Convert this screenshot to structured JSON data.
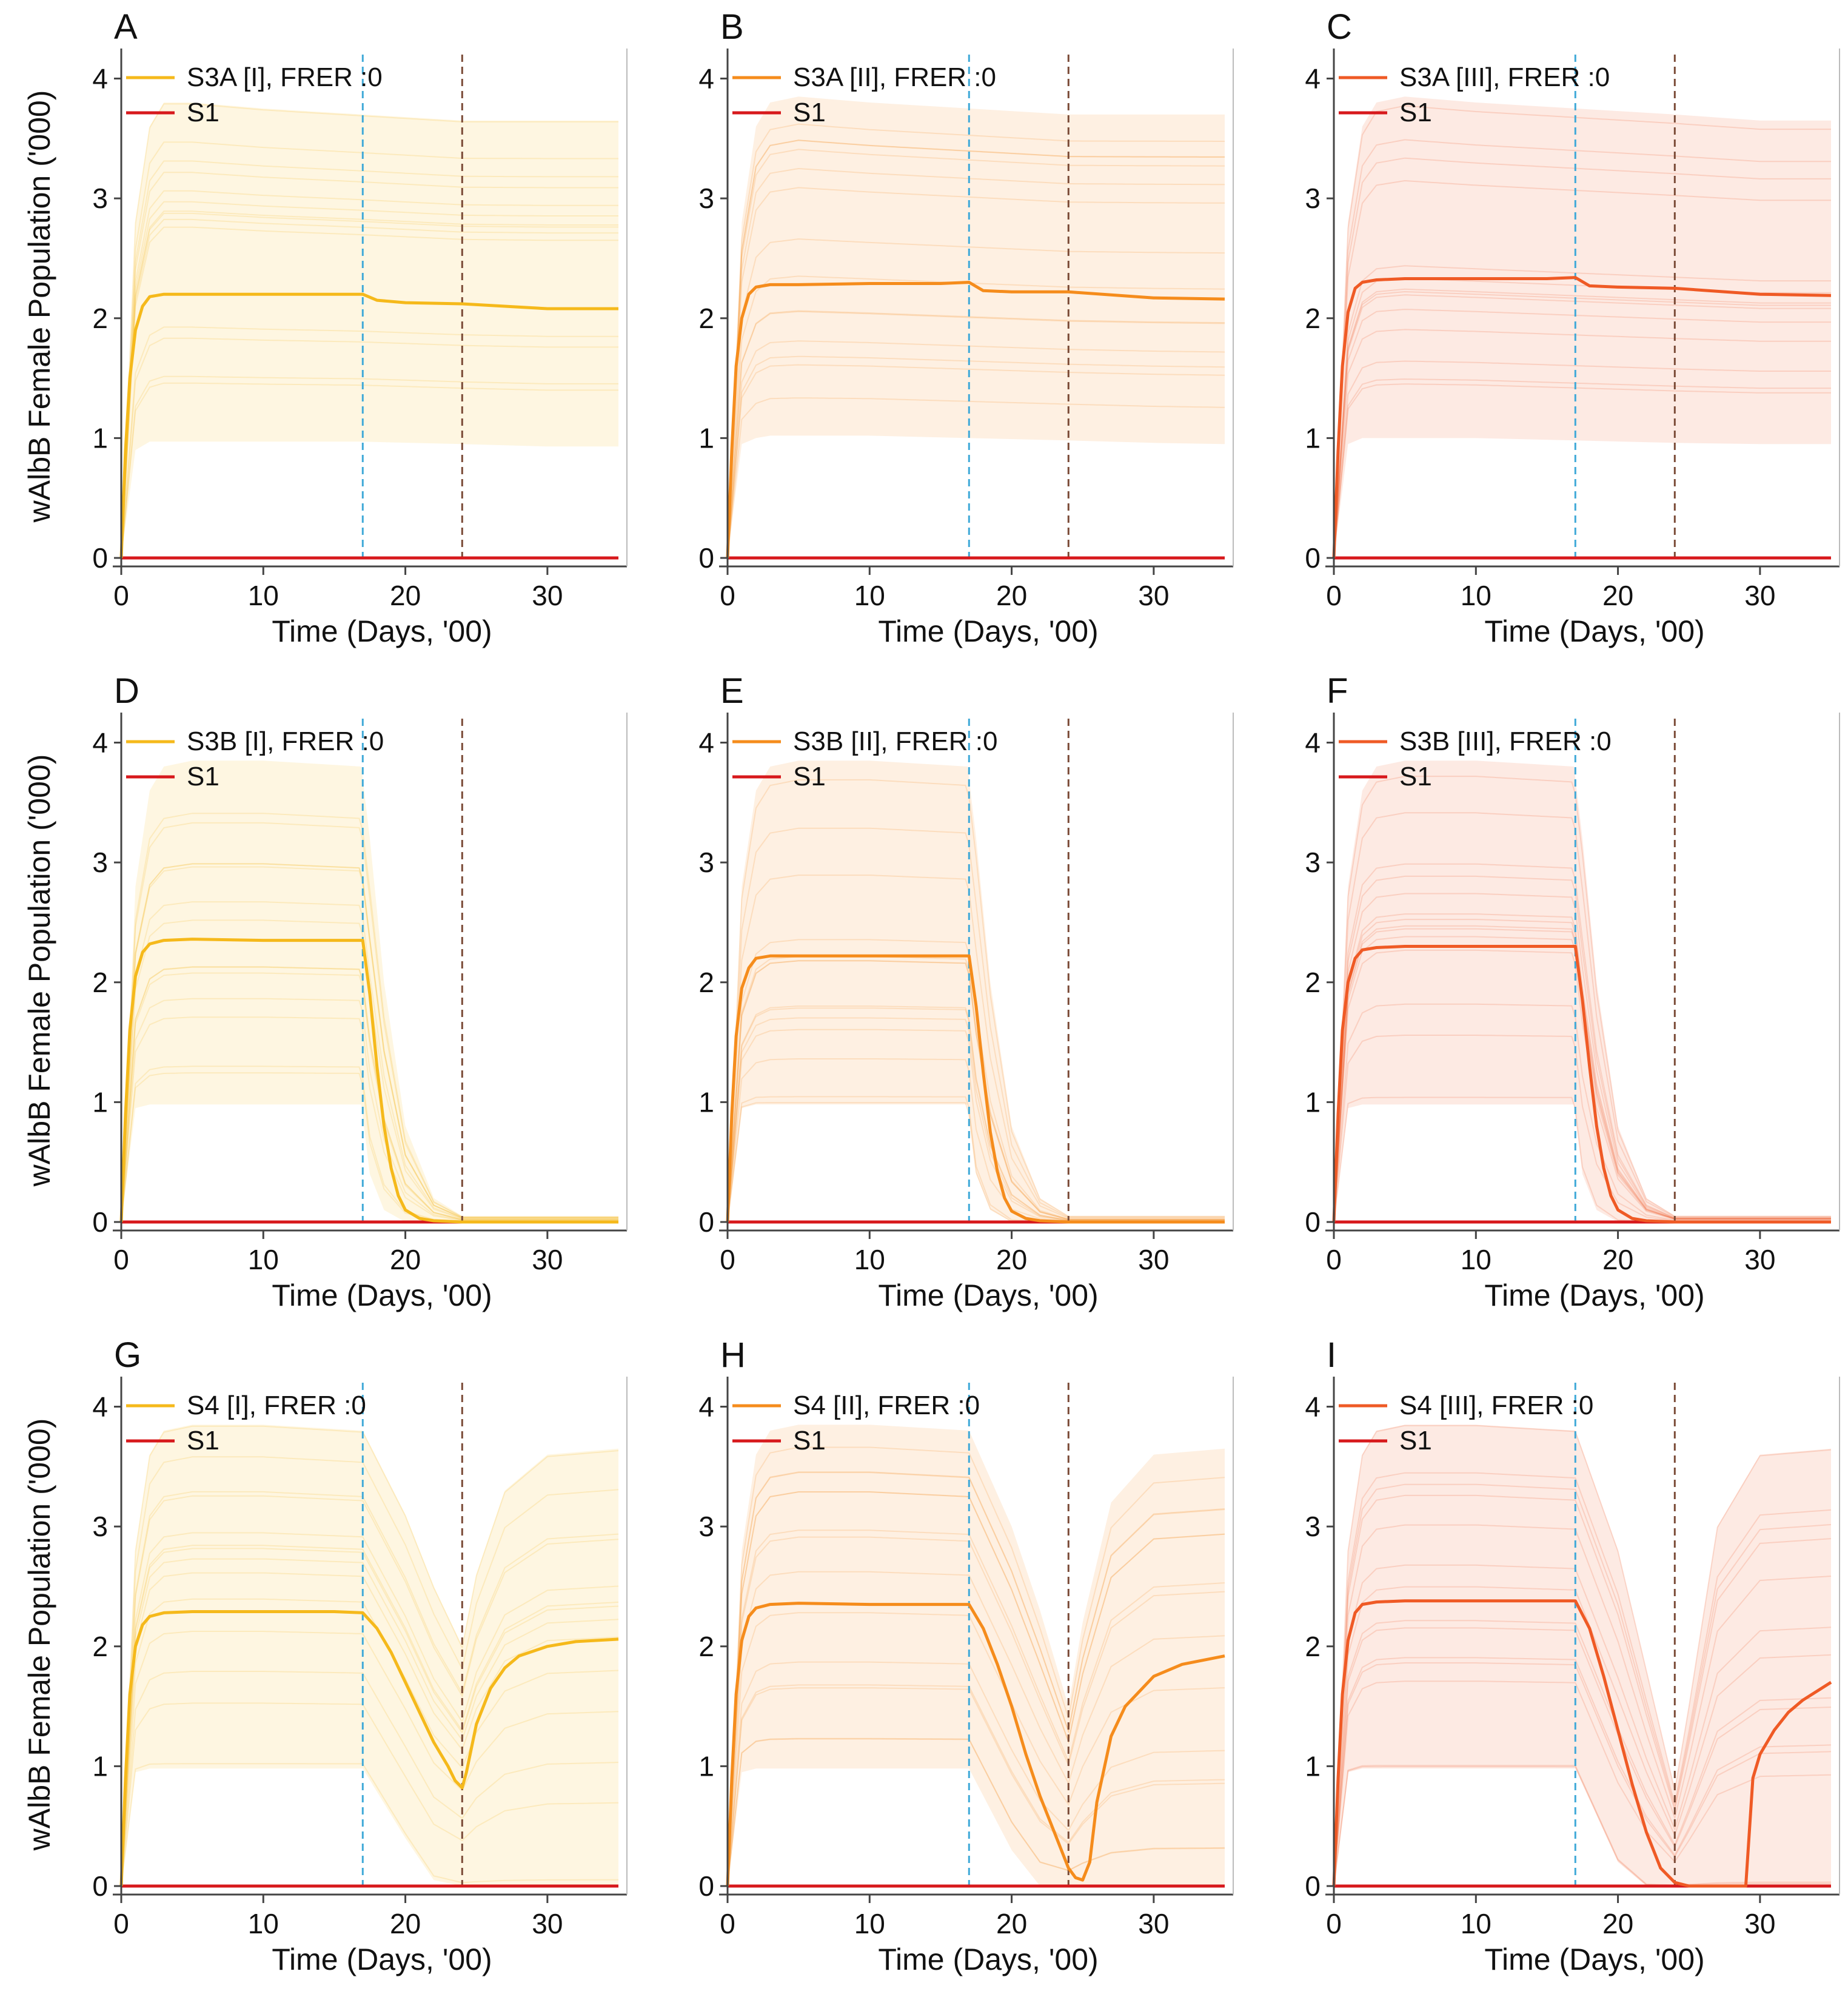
{
  "figure": {
    "axes": {
      "xlabel": "Time (Days, '00)",
      "ylabel": "wAlbB Female Population ('000)",
      "xlim": [
        0,
        35
      ],
      "ylim": [
        0,
        4.2
      ],
      "xticks": [
        0,
        10,
        20,
        30
      ],
      "yticks": [
        0,
        1,
        2,
        3,
        4
      ],
      "vline_blue": 17,
      "vline_brown": 24,
      "vline_blue_color": "#3fa9d8",
      "vline_brown_color": "#7a4a36"
    },
    "colors": {
      "I": "#f5b91b",
      "II": "#f58c1c",
      "III": "#ef5a25",
      "S1": "#d7191c"
    }
  },
  "chart_data": [
    {
      "type": "line",
      "panel": "A",
      "scenario": "S3A",
      "intensity": "I",
      "legend": [
        "S3A [I], FRER :0",
        "S1"
      ],
      "xlabel": "Time (Days, '00)",
      "ylabel": "wAlbB Female Population ('000)",
      "xlim": [
        0,
        35
      ],
      "ylim": [
        0,
        4.2
      ],
      "grid": false,
      "legend_position": "top-left",
      "series": [
        {
          "name": "S3A [I], FRER :0 (mean)",
          "x": [
            0,
            0.3,
            0.6,
            1,
            1.5,
            2,
            3,
            5,
            10,
            15,
            17,
            18,
            20,
            24,
            30,
            35
          ],
          "y": [
            0,
            0.9,
            1.5,
            1.9,
            2.1,
            2.18,
            2.2,
            2.2,
            2.2,
            2.2,
            2.2,
            2.15,
            2.13,
            2.12,
            2.08,
            2.08
          ]
        },
        {
          "name": "S1",
          "x": [
            0,
            35
          ],
          "y": [
            0,
            0
          ]
        }
      ],
      "envelope": {
        "x": [
          0,
          1,
          2,
          3,
          5,
          10,
          17,
          24,
          30,
          35
        ],
        "upper": [
          0,
          2.8,
          3.6,
          3.8,
          3.8,
          3.75,
          3.7,
          3.65,
          3.65,
          3.65
        ],
        "lower": [
          0,
          0.9,
          0.97,
          0.97,
          0.97,
          0.97,
          0.97,
          0.95,
          0.93,
          0.93
        ]
      }
    },
    {
      "type": "line",
      "panel": "B",
      "scenario": "S3A",
      "intensity": "II",
      "legend": [
        "S3A [II], FRER :0",
        "S1"
      ],
      "xlabel": "Time (Days, '00)",
      "ylabel": "wAlbB Female Population ('000)",
      "xlim": [
        0,
        35
      ],
      "ylim": [
        0,
        4.2
      ],
      "grid": false,
      "legend_position": "top-left",
      "series": [
        {
          "name": "S3A [II], FRER :0 (mean)",
          "x": [
            0,
            0.3,
            0.6,
            1,
            1.5,
            2,
            3,
            5,
            10,
            15,
            17,
            18,
            20,
            24,
            30,
            35
          ],
          "y": [
            0,
            0.9,
            1.6,
            2.0,
            2.2,
            2.26,
            2.28,
            2.28,
            2.29,
            2.29,
            2.3,
            2.23,
            2.22,
            2.22,
            2.17,
            2.16
          ]
        },
        {
          "name": "S1",
          "x": [
            0,
            35
          ],
          "y": [
            0,
            0
          ]
        }
      ],
      "envelope": {
        "x": [
          0,
          1,
          2,
          3,
          5,
          10,
          17,
          24,
          30,
          35
        ],
        "upper": [
          0,
          2.8,
          3.6,
          3.8,
          3.85,
          3.8,
          3.75,
          3.7,
          3.7,
          3.7
        ],
        "lower": [
          0,
          0.95,
          1.0,
          1.02,
          1.02,
          1.02,
          1.0,
          0.98,
          0.96,
          0.95
        ]
      }
    },
    {
      "type": "line",
      "panel": "C",
      "scenario": "S3A",
      "intensity": "III",
      "legend": [
        "S3A [III], FRER :0",
        "S1"
      ],
      "xlabel": "Time (Days, '00)",
      "ylabel": "wAlbB Female Population ('000)",
      "xlim": [
        0,
        35
      ],
      "ylim": [
        0,
        4.2
      ],
      "grid": false,
      "legend_position": "top-left",
      "series": [
        {
          "name": "S3A [III], FRER :0 (mean)",
          "x": [
            0,
            0.3,
            0.6,
            1,
            1.5,
            2,
            3,
            5,
            10,
            15,
            17,
            18,
            20,
            24,
            30,
            35
          ],
          "y": [
            0,
            0.9,
            1.6,
            2.05,
            2.25,
            2.3,
            2.32,
            2.33,
            2.33,
            2.33,
            2.34,
            2.27,
            2.26,
            2.25,
            2.2,
            2.19
          ]
        },
        {
          "name": "S1",
          "x": [
            0,
            35
          ],
          "y": [
            0,
            0
          ]
        }
      ],
      "envelope": {
        "x": [
          0,
          1,
          2,
          3,
          5,
          10,
          17,
          24,
          30,
          35
        ],
        "upper": [
          0,
          2.8,
          3.6,
          3.8,
          3.85,
          3.8,
          3.75,
          3.7,
          3.65,
          3.65
        ],
        "lower": [
          0,
          0.95,
          1.0,
          1.0,
          1.0,
          1.0,
          0.98,
          0.96,
          0.95,
          0.95
        ]
      }
    },
    {
      "type": "line",
      "panel": "D",
      "scenario": "S3B",
      "intensity": "I",
      "legend": [
        "S3B [I], FRER :0",
        "S1"
      ],
      "xlabel": "Time (Days, '00)",
      "ylabel": "wAlbB Female Population ('000)",
      "xlim": [
        0,
        35
      ],
      "ylim": [
        0,
        4.2
      ],
      "grid": false,
      "legend_position": "top-left",
      "series": [
        {
          "name": "S3B [I], FRER :0 (mean)",
          "x": [
            0,
            0.3,
            0.6,
            1,
            1.5,
            2,
            3,
            5,
            10,
            15,
            17,
            17.5,
            18,
            18.5,
            19,
            19.5,
            20,
            21,
            22,
            24,
            30,
            35
          ],
          "y": [
            0,
            0.9,
            1.6,
            2.05,
            2.25,
            2.32,
            2.35,
            2.36,
            2.35,
            2.35,
            2.35,
            1.9,
            1.3,
            0.8,
            0.45,
            0.22,
            0.1,
            0.03,
            0.01,
            0,
            0,
            0
          ]
        },
        {
          "name": "S1",
          "x": [
            0,
            35
          ],
          "y": [
            0,
            0
          ]
        }
      ],
      "envelope": {
        "x": [
          0,
          1,
          2,
          3,
          5,
          10,
          16.9,
          17.5,
          18.5,
          20,
          22,
          24,
          30,
          35
        ],
        "upper": [
          0,
          2.8,
          3.6,
          3.8,
          3.85,
          3.85,
          3.8,
          3.2,
          2.0,
          0.8,
          0.2,
          0.05,
          0.05,
          0.05
        ],
        "lower": [
          0,
          0.95,
          0.98,
          0.98,
          0.98,
          0.98,
          0.98,
          0.4,
          0.1,
          0,
          0,
          0,
          0,
          0
        ]
      }
    },
    {
      "type": "line",
      "panel": "E",
      "scenario": "S3B",
      "intensity": "II",
      "legend": [
        "S3B [II], FRER :0",
        "S1"
      ],
      "xlabel": "Time (Days, '00)",
      "ylabel": "wAlbB Female Population ('000)",
      "xlim": [
        0,
        35
      ],
      "ylim": [
        0,
        4.2
      ],
      "grid": false,
      "legend_position": "top-left",
      "series": [
        {
          "name": "S3B [II], FRER :0 (mean)",
          "x": [
            0,
            0.3,
            0.6,
            1,
            1.5,
            2,
            3,
            5,
            10,
            15,
            17,
            17.5,
            18,
            18.5,
            19,
            19.5,
            20,
            21,
            22,
            24,
            30,
            35
          ],
          "y": [
            0,
            0.9,
            1.55,
            1.95,
            2.12,
            2.2,
            2.22,
            2.22,
            2.22,
            2.22,
            2.22,
            1.8,
            1.25,
            0.75,
            0.42,
            0.2,
            0.09,
            0.03,
            0.01,
            0,
            0,
            0
          ]
        },
        {
          "name": "S1",
          "x": [
            0,
            35
          ],
          "y": [
            0,
            0
          ]
        }
      ],
      "envelope": {
        "x": [
          0,
          1,
          2,
          3,
          5,
          10,
          16.9,
          17.5,
          18.5,
          20,
          22,
          24,
          30,
          35
        ],
        "upper": [
          0,
          2.8,
          3.6,
          3.8,
          3.85,
          3.85,
          3.8,
          3.2,
          2.0,
          0.8,
          0.2,
          0.05,
          0.05,
          0.05
        ],
        "lower": [
          0,
          0.95,
          0.98,
          0.98,
          0.98,
          0.98,
          0.98,
          0.4,
          0.1,
          0,
          0,
          0,
          0,
          0
        ]
      }
    },
    {
      "type": "line",
      "panel": "F",
      "scenario": "S3B",
      "intensity": "III",
      "legend": [
        "S3B [III], FRER :0",
        "S1"
      ],
      "xlabel": "Time (Days, '00)",
      "ylabel": "wAlbB Female Population ('000)",
      "xlim": [
        0,
        35
      ],
      "ylim": [
        0,
        4.2
      ],
      "grid": false,
      "legend_position": "top-left",
      "series": [
        {
          "name": "S3B [III], FRER :0 (mean)",
          "x": [
            0,
            0.3,
            0.6,
            1,
            1.5,
            2,
            3,
            5,
            10,
            15,
            17,
            17.5,
            18,
            18.5,
            19,
            19.5,
            20,
            21,
            22,
            24,
            30,
            35
          ],
          "y": [
            0,
            0.9,
            1.6,
            2.0,
            2.2,
            2.27,
            2.29,
            2.3,
            2.3,
            2.3,
            2.3,
            1.85,
            1.3,
            0.8,
            0.45,
            0.22,
            0.1,
            0.03,
            0.01,
            0,
            0,
            0
          ]
        },
        {
          "name": "S1",
          "x": [
            0,
            35
          ],
          "y": [
            0,
            0
          ]
        }
      ],
      "envelope": {
        "x": [
          0,
          1,
          2,
          3,
          5,
          10,
          16.9,
          17.5,
          18.5,
          20,
          22,
          24,
          30,
          35
        ],
        "upper": [
          0,
          2.8,
          3.6,
          3.8,
          3.85,
          3.85,
          3.8,
          3.2,
          2.0,
          0.8,
          0.2,
          0.05,
          0.05,
          0.05
        ],
        "lower": [
          0,
          0.95,
          0.98,
          0.98,
          0.98,
          0.98,
          0.98,
          0.4,
          0.1,
          0,
          0,
          0,
          0,
          0
        ]
      }
    },
    {
      "type": "line",
      "panel": "G",
      "scenario": "S4",
      "intensity": "I",
      "legend": [
        "S4 [I], FRER :0",
        "S1"
      ],
      "xlabel": "Time (Days, '00)",
      "ylabel": "wAlbB Female Population ('000)",
      "xlim": [
        0,
        35
      ],
      "ylim": [
        0,
        4.2
      ],
      "grid": false,
      "legend_position": "top-left",
      "series": [
        {
          "name": "S4 [I], FRER :0 (mean)",
          "x": [
            0,
            0.3,
            0.6,
            1,
            1.5,
            2,
            3,
            5,
            10,
            15,
            17,
            18,
            19,
            20,
            21,
            22,
            23,
            23.5,
            24,
            24.3,
            25,
            26,
            27,
            28,
            30,
            32,
            35
          ],
          "y": [
            0,
            0.9,
            1.6,
            2.0,
            2.18,
            2.25,
            2.28,
            2.29,
            2.29,
            2.29,
            2.28,
            2.15,
            1.95,
            1.7,
            1.45,
            1.2,
            1.0,
            0.88,
            0.82,
            0.95,
            1.35,
            1.65,
            1.82,
            1.92,
            2.0,
            2.04,
            2.06
          ]
        },
        {
          "name": "S1",
          "x": [
            0,
            35
          ],
          "y": [
            0,
            0
          ]
        }
      ],
      "envelope": {
        "x": [
          0,
          1,
          2,
          3,
          5,
          10,
          17,
          20,
          22,
          24,
          25,
          27,
          30,
          35
        ],
        "upper": [
          0,
          2.8,
          3.6,
          3.8,
          3.85,
          3.85,
          3.8,
          3.1,
          2.5,
          2.0,
          2.6,
          3.3,
          3.6,
          3.65
        ],
        "lower": [
          0,
          0.95,
          0.98,
          0.98,
          0.98,
          0.98,
          0.98,
          0.4,
          0.05,
          0,
          0,
          0,
          0,
          0
        ]
      }
    },
    {
      "type": "line",
      "panel": "H",
      "scenario": "S4",
      "intensity": "II",
      "legend": [
        "S4 [II], FRER :0",
        "S1"
      ],
      "xlabel": "Time (Days, '00)",
      "ylabel": "wAlbB Female Population ('000)",
      "xlim": [
        0,
        35
      ],
      "ylim": [
        0,
        4.2
      ],
      "grid": false,
      "legend_position": "top-left",
      "series": [
        {
          "name": "S4 [II], FRER :0 (mean)",
          "x": [
            0,
            0.3,
            0.6,
            1,
            1.5,
            2,
            3,
            5,
            10,
            15,
            17,
            18,
            19,
            20,
            21,
            22,
            23,
            24,
            24.5,
            25,
            25.5,
            26,
            27,
            28,
            30,
            32,
            35
          ],
          "y": [
            0,
            0.9,
            1.6,
            2.05,
            2.25,
            2.32,
            2.35,
            2.36,
            2.35,
            2.35,
            2.35,
            2.15,
            1.85,
            1.5,
            1.1,
            0.75,
            0.45,
            0.15,
            0.07,
            0.05,
            0.2,
            0.7,
            1.25,
            1.5,
            1.75,
            1.85,
            1.92
          ]
        },
        {
          "name": "S1",
          "x": [
            0,
            35
          ],
          "y": [
            0,
            0
          ]
        }
      ],
      "envelope": {
        "x": [
          0,
          1,
          2,
          3,
          5,
          10,
          17,
          20,
          22,
          24,
          25,
          27,
          30,
          35
        ],
        "upper": [
          0,
          2.8,
          3.6,
          3.8,
          3.85,
          3.85,
          3.8,
          3.0,
          2.3,
          1.5,
          2.2,
          3.2,
          3.6,
          3.65
        ],
        "lower": [
          0,
          0.95,
          0.98,
          0.98,
          0.98,
          0.98,
          0.98,
          0.3,
          0,
          0,
          0,
          0,
          0,
          0
        ]
      }
    },
    {
      "type": "line",
      "panel": "I",
      "scenario": "S4",
      "intensity": "III",
      "legend": [
        "S4 [III], FRER :0",
        "S1"
      ],
      "xlabel": "Time (Days, '00)",
      "ylabel": "wAlbB Female Population ('000)",
      "xlim": [
        0,
        35
      ],
      "ylim": [
        0,
        4.2
      ],
      "grid": false,
      "legend_position": "top-left",
      "series": [
        {
          "name": "S4 [III], FRER :0 (mean)",
          "x": [
            0,
            0.3,
            0.6,
            1,
            1.5,
            2,
            3,
            5,
            10,
            15,
            17,
            18,
            19,
            20,
            21,
            22,
            23,
            24,
            25,
            27,
            29,
            29.5,
            30,
            31,
            32,
            33,
            35
          ],
          "y": [
            0,
            0.9,
            1.6,
            2.05,
            2.28,
            2.35,
            2.37,
            2.38,
            2.38,
            2.38,
            2.38,
            2.15,
            1.75,
            1.3,
            0.85,
            0.45,
            0.15,
            0.03,
            0,
            0,
            0,
            0.9,
            1.1,
            1.3,
            1.45,
            1.55,
            1.7
          ]
        },
        {
          "name": "S1",
          "x": [
            0,
            35
          ],
          "y": [
            0,
            0
          ]
        }
      ],
      "envelope": {
        "x": [
          0,
          1,
          2,
          3,
          5,
          10,
          17,
          20,
          22,
          24,
          25,
          27,
          30,
          35
        ],
        "upper": [
          0,
          2.8,
          3.6,
          3.8,
          3.85,
          3.85,
          3.8,
          2.8,
          1.8,
          0.8,
          1.5,
          3.0,
          3.6,
          3.65
        ],
        "lower": [
          0,
          0.95,
          0.98,
          0.98,
          0.98,
          0.98,
          0.98,
          0.2,
          0,
          0,
          0,
          0,
          0,
          0
        ]
      }
    }
  ]
}
